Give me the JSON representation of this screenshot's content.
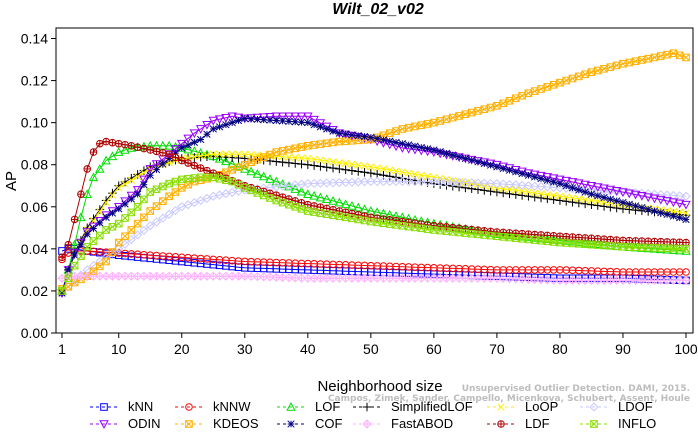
{
  "chart_data": {
    "type": "line",
    "title": "Wilt_02_v02",
    "xlabel": "Neighborhood size",
    "ylabel": "AP",
    "xlim": [
      1,
      100
    ],
    "ylim": [
      0,
      0.145
    ],
    "xticks": [
      "1",
      "10",
      "20",
      "30",
      "40",
      "50",
      "60",
      "70",
      "80",
      "90",
      "100"
    ],
    "yticks": [
      "0.00",
      "0.02",
      "0.04",
      "0.06",
      "0.08",
      "0.10",
      "0.12",
      "0.14"
    ],
    "grid": false,
    "legend_position": "bottom",
    "credit_line1": "Unsupervised Outlier Detection. DAMI, 2015.",
    "credit_line2": "Campos, Zimek, Sander, Campello, Micenkova, Schubert, Assent, Houle",
    "series": [
      {
        "name": "kNN",
        "color": "#0000ff",
        "marker": "square",
        "x": [
          1,
          2,
          3,
          5,
          10,
          20,
          30,
          40,
          50,
          60,
          70,
          80,
          90,
          100
        ],
        "y": [
          0.039,
          0.04,
          0.04,
          0.039,
          0.037,
          0.034,
          0.031,
          0.03,
          0.029,
          0.028,
          0.027,
          0.026,
          0.026,
          0.025
        ]
      },
      {
        "name": "kNNW",
        "color": "#ff0000",
        "marker": "circle",
        "x": [
          1,
          2,
          3,
          5,
          10,
          20,
          30,
          40,
          50,
          60,
          70,
          80,
          90,
          100
        ],
        "y": [
          0.035,
          0.038,
          0.039,
          0.039,
          0.038,
          0.036,
          0.034,
          0.033,
          0.032,
          0.031,
          0.03,
          0.03,
          0.029,
          0.029
        ]
      },
      {
        "name": "LOF",
        "color": "#00dd00",
        "marker": "triangle",
        "x": [
          1,
          2,
          3,
          4,
          5,
          6,
          8,
          10,
          12,
          15,
          18,
          20,
          25,
          30,
          40,
          50,
          60,
          70,
          80,
          90,
          100
        ],
        "y": [
          0.02,
          0.03,
          0.042,
          0.055,
          0.066,
          0.074,
          0.082,
          0.086,
          0.088,
          0.089,
          0.089,
          0.088,
          0.084,
          0.078,
          0.066,
          0.058,
          0.052,
          0.047,
          0.044,
          0.041,
          0.039
        ]
      },
      {
        "name": "SimplifiedLOF",
        "color": "#000000",
        "marker": "plus",
        "x": [
          1,
          2,
          3,
          5,
          8,
          10,
          15,
          20,
          25,
          30,
          40,
          50,
          60,
          70,
          80,
          90,
          100
        ],
        "y": [
          0.019,
          0.03,
          0.038,
          0.05,
          0.063,
          0.07,
          0.079,
          0.083,
          0.084,
          0.083,
          0.08,
          0.076,
          0.071,
          0.067,
          0.063,
          0.059,
          0.056
        ]
      },
      {
        "name": "LoOP",
        "color": "#ffee00",
        "marker": "x",
        "x": [
          1,
          2,
          3,
          5,
          8,
          10,
          15,
          20,
          25,
          30,
          40,
          50,
          60,
          70,
          80,
          90,
          100
        ],
        "y": [
          0.02,
          0.029,
          0.037,
          0.049,
          0.062,
          0.069,
          0.078,
          0.083,
          0.085,
          0.085,
          0.083,
          0.079,
          0.074,
          0.069,
          0.065,
          0.061,
          0.057
        ]
      },
      {
        "name": "LDOF",
        "color": "#c8c8ff",
        "marker": "diamond",
        "x": [
          1,
          2,
          3,
          5,
          10,
          15,
          20,
          25,
          30,
          40,
          50,
          60,
          70,
          80,
          90,
          100
        ],
        "y": [
          0.019,
          0.022,
          0.025,
          0.03,
          0.04,
          0.051,
          0.06,
          0.065,
          0.068,
          0.071,
          0.072,
          0.072,
          0.071,
          0.069,
          0.067,
          0.065
        ]
      },
      {
        "name": "ODIN",
        "color": "#9900ff",
        "marker": "triangle-down",
        "x": [
          1,
          2,
          3,
          5,
          8,
          10,
          13,
          15,
          18,
          20,
          22,
          25,
          28,
          30,
          35,
          40,
          45,
          50,
          55,
          60,
          65,
          70,
          75,
          80,
          85,
          90,
          95,
          100
        ],
        "y": [
          0.019,
          0.03,
          0.038,
          0.048,
          0.056,
          0.06,
          0.068,
          0.078,
          0.085,
          0.09,
          0.095,
          0.101,
          0.103,
          0.102,
          0.103,
          0.103,
          0.095,
          0.092,
          0.088,
          0.086,
          0.083,
          0.08,
          0.076,
          0.073,
          0.07,
          0.067,
          0.064,
          0.061
        ]
      },
      {
        "name": "KDEOS",
        "color": "#ffb000",
        "marker": "box-x",
        "x": [
          1,
          2,
          3,
          5,
          8,
          10,
          13,
          15,
          18,
          20,
          22,
          25,
          30,
          35,
          40,
          45,
          50,
          55,
          60,
          65,
          70,
          75,
          80,
          85,
          90,
          95,
          98,
          100
        ],
        "y": [
          0.021,
          0.022,
          0.024,
          0.027,
          0.034,
          0.043,
          0.052,
          0.058,
          0.065,
          0.069,
          0.072,
          0.074,
          0.08,
          0.086,
          0.089,
          0.091,
          0.092,
          0.097,
          0.1,
          0.104,
          0.108,
          0.114,
          0.119,
          0.124,
          0.128,
          0.131,
          0.133,
          0.131
        ]
      },
      {
        "name": "COF",
        "color": "#000080",
        "marker": "star",
        "x": [
          1,
          2,
          3,
          5,
          8,
          10,
          13,
          15,
          18,
          20,
          23,
          25,
          28,
          30,
          35,
          40,
          45,
          50,
          55,
          60,
          65,
          70,
          75,
          80,
          85,
          90,
          95,
          100
        ],
        "y": [
          0.019,
          0.03,
          0.037,
          0.047,
          0.055,
          0.059,
          0.066,
          0.075,
          0.083,
          0.088,
          0.092,
          0.097,
          0.1,
          0.102,
          0.101,
          0.1,
          0.095,
          0.093,
          0.09,
          0.087,
          0.083,
          0.079,
          0.075,
          0.071,
          0.066,
          0.062,
          0.058,
          0.054
        ]
      },
      {
        "name": "FastABOD",
        "color": "#ffb0ff",
        "marker": "diamond-plus",
        "x": [
          1,
          2,
          3,
          5,
          10,
          20,
          30,
          40,
          50,
          60,
          70,
          80,
          90,
          100
        ],
        "y": [
          0.026,
          0.027,
          0.027,
          0.027,
          0.027,
          0.027,
          0.027,
          0.026,
          0.026,
          0.026,
          0.026,
          0.025,
          0.025,
          0.025
        ]
      },
      {
        "name": "LDF",
        "color": "#b00000",
        "marker": "circle-plus",
        "x": [
          1,
          2,
          3,
          4,
          5,
          6,
          7,
          8,
          10,
          12,
          15,
          18,
          20,
          25,
          30,
          40,
          50,
          60,
          70,
          80,
          90,
          100
        ],
        "y": [
          0.036,
          0.042,
          0.054,
          0.066,
          0.078,
          0.086,
          0.09,
          0.091,
          0.09,
          0.089,
          0.087,
          0.085,
          0.082,
          0.076,
          0.07,
          0.061,
          0.055,
          0.051,
          0.048,
          0.046,
          0.044,
          0.043
        ]
      },
      {
        "name": "INFLO",
        "color": "#88dd00",
        "marker": "box-x",
        "x": [
          1,
          2,
          3,
          5,
          8,
          10,
          13,
          15,
          18,
          20,
          23,
          25,
          28,
          30,
          35,
          40,
          50,
          60,
          70,
          80,
          90,
          100
        ],
        "y": [
          0.02,
          0.026,
          0.032,
          0.041,
          0.049,
          0.052,
          0.06,
          0.067,
          0.071,
          0.073,
          0.074,
          0.074,
          0.072,
          0.069,
          0.063,
          0.058,
          0.053,
          0.049,
          0.046,
          0.043,
          0.041,
          0.04
        ]
      }
    ],
    "legend_rows": [
      [
        "kNN",
        "kNNW",
        "LOF",
        "SimplifiedLOF",
        "LoOP",
        "LDOF"
      ],
      [
        "ODIN",
        "KDEOS",
        "COF",
        "FastABOD",
        "LDF",
        "INFLO"
      ]
    ]
  }
}
